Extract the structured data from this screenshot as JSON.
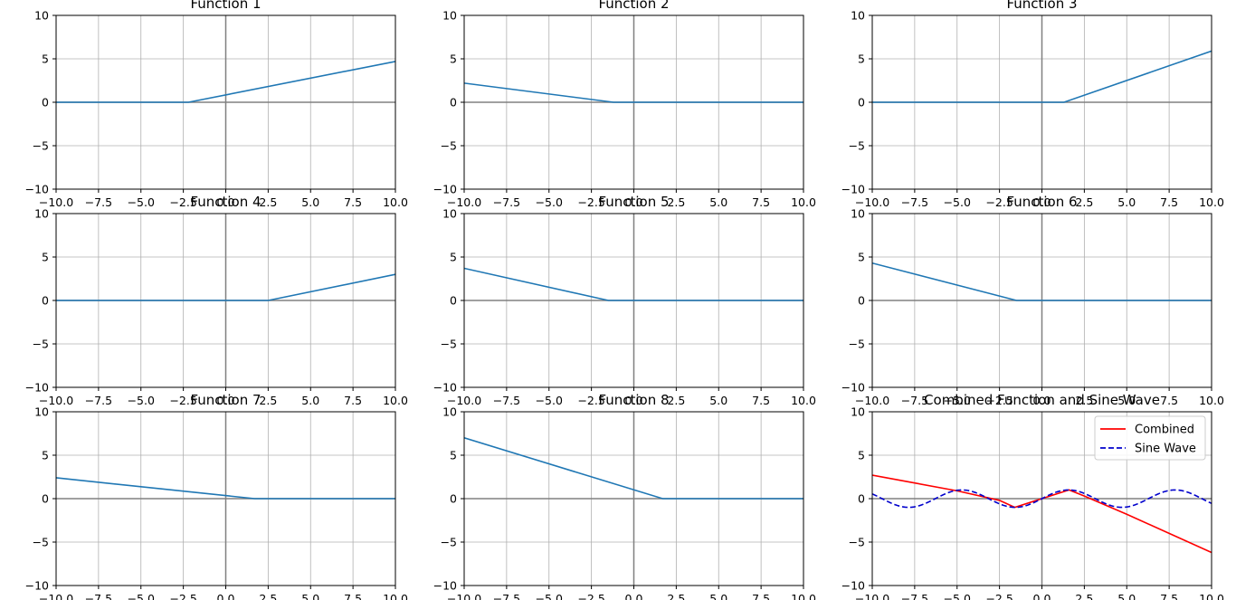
{
  "figure": {
    "grid": "3x3",
    "x_ticks": [
      "−10.0",
      "−7.5",
      "−5.0",
      "−2.5",
      "0.0",
      "2.5",
      "5.0",
      "7.5",
      "10.0"
    ],
    "y_ticks": [
      "−10",
      "−5",
      "0",
      "5",
      "10"
    ],
    "colors": {
      "relu_line": "#1f77b4",
      "combined_line": "#ff0000",
      "sine_line": "#0000cc",
      "grid": "#b0b0b0",
      "zero_axis": "#808080"
    }
  },
  "chart_data": [
    {
      "type": "line",
      "title": "Function 1",
      "xlim": [
        -10,
        10
      ],
      "ylim": [
        -10,
        10
      ],
      "grid": true,
      "series": [
        {
          "x": [
            -10,
            -2.2,
            10
          ],
          "y": [
            0,
            0,
            4.7
          ]
        }
      ]
    },
    {
      "type": "line",
      "title": "Function 2",
      "xlim": [
        -10,
        10
      ],
      "ylim": [
        -10,
        10
      ],
      "grid": true,
      "series": [
        {
          "x": [
            -10,
            -1.2,
            10
          ],
          "y": [
            2.2,
            0,
            0
          ]
        }
      ]
    },
    {
      "type": "line",
      "title": "Function 3",
      "xlim": [
        -10,
        10
      ],
      "ylim": [
        -10,
        10
      ],
      "grid": true,
      "series": [
        {
          "x": [
            -10,
            1.3,
            10
          ],
          "y": [
            0,
            0,
            5.9
          ]
        }
      ]
    },
    {
      "type": "line",
      "title": "Function 4",
      "xlim": [
        -10,
        10
      ],
      "ylim": [
        -10,
        10
      ],
      "grid": true,
      "series": [
        {
          "x": [
            -10,
            2.5,
            10
          ],
          "y": [
            0,
            0,
            3.0
          ]
        }
      ]
    },
    {
      "type": "line",
      "title": "Function 5",
      "xlim": [
        -10,
        10
      ],
      "ylim": [
        -10,
        10
      ],
      "grid": true,
      "series": [
        {
          "x": [
            -10,
            -1.5,
            10
          ],
          "y": [
            3.7,
            0,
            0
          ]
        }
      ]
    },
    {
      "type": "line",
      "title": "Function 6",
      "xlim": [
        -10,
        10
      ],
      "ylim": [
        -10,
        10
      ],
      "grid": true,
      "series": [
        {
          "x": [
            -10,
            -1.5,
            10
          ],
          "y": [
            4.3,
            0,
            0
          ]
        }
      ]
    },
    {
      "type": "line",
      "title": "Function 7",
      "xlim": [
        -10,
        10
      ],
      "ylim": [
        -10,
        10
      ],
      "grid": true,
      "series": [
        {
          "x": [
            -10,
            1.7,
            10
          ],
          "y": [
            2.4,
            0,
            0
          ]
        }
      ]
    },
    {
      "type": "line",
      "title": "Function 8",
      "xlim": [
        -10,
        10
      ],
      "ylim": [
        -10,
        10
      ],
      "grid": true,
      "series": [
        {
          "x": [
            -10,
            1.7,
            10
          ],
          "y": [
            7.0,
            0,
            0
          ]
        }
      ]
    },
    {
      "type": "line",
      "title": "Combined Function and Sine Wave",
      "xlim": [
        -10,
        10
      ],
      "ylim": [
        -10,
        10
      ],
      "grid": true,
      "legend": "top-right",
      "series": [
        {
          "name": "Combined",
          "style": "solid",
          "color": "#ff0000",
          "x": [
            -10,
            -7.5,
            -5,
            -2.5,
            -1.6,
            0,
            1.6,
            2.5,
            5,
            7.5,
            10
          ],
          "y": [
            2.7,
            1.8,
            0.9,
            -0.2,
            -1.0,
            0.0,
            1.0,
            0.3,
            -1.8,
            -4.0,
            -6.2
          ]
        },
        {
          "name": "Sine Wave",
          "style": "dashed",
          "color": "#0000cc",
          "function": "sin(x)",
          "x": [
            -10,
            10
          ]
        }
      ]
    }
  ]
}
